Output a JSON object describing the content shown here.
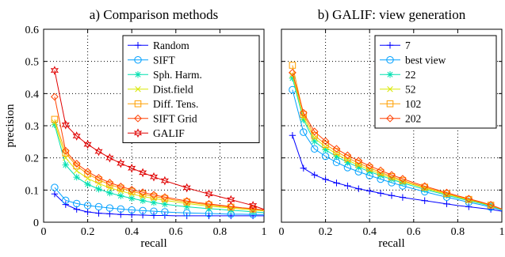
{
  "chart_data": [
    {
      "type": "line",
      "title": "a) Comparison methods",
      "xlabel": "recall",
      "ylabel": "precision",
      "xlim": [
        0,
        1
      ],
      "ylim": [
        0,
        0.6
      ],
      "xticks": [
        "0",
        "0.2",
        "0.4",
        "0.6",
        "0.8",
        "1"
      ],
      "yticks": [
        "0",
        "0.1",
        "0.2",
        "0.3",
        "0.4",
        "0.5",
        "0.6"
      ],
      "grid": true,
      "legend_position": "top-right",
      "x": [
        0.05,
        0.1,
        0.15,
        0.2,
        0.25,
        0.3,
        0.35,
        0.4,
        0.45,
        0.5,
        0.55,
        0.6,
        0.65,
        0.7,
        0.75,
        0.8,
        0.85,
        0.9,
        0.95,
        1.0
      ],
      "series": [
        {
          "name": "Random",
          "color": "#0000ff",
          "marker": "plus",
          "values": [
            0.088,
            0.055,
            0.04,
            0.032,
            0.028,
            0.026,
            0.024,
            0.023,
            0.022,
            0.021,
            0.021,
            0.02,
            0.02,
            0.02,
            0.02,
            0.02,
            0.02,
            0.02,
            0.02,
            0.02
          ]
        },
        {
          "name": "SIFT",
          "color": "#00a0ff",
          "marker": "circle",
          "values": [
            0.108,
            0.068,
            0.058,
            0.052,
            0.048,
            0.044,
            0.041,
            0.038,
            0.036,
            0.034,
            0.032,
            0.03,
            0.029,
            0.028,
            0.027,
            0.026,
            0.025,
            0.025,
            0.024,
            0.024
          ]
        },
        {
          "name": "Sph. Harm.",
          "color": "#00e0b0",
          "marker": "star",
          "values": [
            0.303,
            0.178,
            0.14,
            0.118,
            0.103,
            0.091,
            0.082,
            0.074,
            0.067,
            0.061,
            0.056,
            0.052,
            0.048,
            0.045,
            0.042,
            0.04,
            0.037,
            0.035,
            0.032,
            0.03
          ]
        },
        {
          "name": "Dist.field",
          "color": "#d8e800",
          "marker": "x",
          "values": [
            0.31,
            0.2,
            0.16,
            0.136,
            0.12,
            0.107,
            0.097,
            0.088,
            0.08,
            0.074,
            0.068,
            0.063,
            0.058,
            0.054,
            0.05,
            0.047,
            0.044,
            0.041,
            0.038,
            0.035
          ]
        },
        {
          "name": "Diff. Tens.",
          "color": "#ffa000",
          "marker": "square",
          "values": [
            0.32,
            0.215,
            0.175,
            0.15,
            0.132,
            0.117,
            0.106,
            0.096,
            0.088,
            0.08,
            0.074,
            0.068,
            0.063,
            0.058,
            0.054,
            0.05,
            0.047,
            0.044,
            0.041,
            0.037
          ]
        },
        {
          "name": "SIFT Grid",
          "color": "#ff4000",
          "marker": "diamond",
          "values": [
            0.39,
            0.222,
            0.182,
            0.157,
            0.138,
            0.123,
            0.111,
            0.101,
            0.093,
            0.085,
            0.078,
            0.072,
            0.066,
            0.061,
            0.057,
            0.053,
            0.049,
            0.045,
            0.042,
            0.038
          ]
        },
        {
          "name": "GALIF",
          "color": "#e00000",
          "marker": "hexagram",
          "values": [
            0.472,
            0.303,
            0.268,
            0.242,
            0.22,
            0.2,
            0.183,
            0.168,
            0.154,
            0.141,
            0.129,
            0.118,
            0.107,
            0.097,
            0.088,
            0.079,
            0.07,
            0.061,
            0.052,
            0.04
          ]
        }
      ]
    },
    {
      "type": "line",
      "title": "b) GALIF: view generation",
      "xlabel": "recall",
      "ylabel": "",
      "xlim": [
        0,
        1
      ],
      "ylim": [
        0,
        0.6
      ],
      "xticks": [
        "0",
        "0.2",
        "0.4",
        "0.6",
        "0.8",
        "1"
      ],
      "grid": true,
      "legend_position": "top-right",
      "x": [
        0.05,
        0.1,
        0.15,
        0.2,
        0.25,
        0.3,
        0.35,
        0.4,
        0.45,
        0.5,
        0.55,
        0.6,
        0.65,
        0.7,
        0.75,
        0.8,
        0.85,
        0.9,
        0.95,
        1.0
      ],
      "series": [
        {
          "name": "7",
          "color": "#0000ff",
          "marker": "plus",
          "values": [
            0.27,
            0.168,
            0.147,
            0.133,
            0.122,
            0.113,
            0.104,
            0.097,
            0.09,
            0.083,
            0.077,
            0.072,
            0.067,
            0.062,
            0.057,
            0.052,
            0.048,
            0.044,
            0.04,
            0.034
          ]
        },
        {
          "name": "best view",
          "color": "#00a0ff",
          "marker": "circle",
          "values": [
            0.412,
            0.28,
            0.228,
            0.205,
            0.186,
            0.17,
            0.157,
            0.145,
            0.134,
            0.123,
            0.113,
            0.104,
            0.095,
            0.086,
            0.078,
            0.07,
            0.062,
            0.055,
            0.047,
            0.037
          ]
        },
        {
          "name": "22",
          "color": "#00e0b0",
          "marker": "star",
          "values": [
            0.448,
            0.318,
            0.251,
            0.225,
            0.204,
            0.186,
            0.171,
            0.157,
            0.145,
            0.133,
            0.122,
            0.112,
            0.102,
            0.093,
            0.084,
            0.075,
            0.067,
            0.059,
            0.05,
            0.039
          ]
        },
        {
          "name": "52",
          "color": "#d8e800",
          "marker": "x",
          "values": [
            0.458,
            0.325,
            0.262,
            0.234,
            0.212,
            0.193,
            0.177,
            0.163,
            0.15,
            0.138,
            0.126,
            0.116,
            0.106,
            0.096,
            0.087,
            0.078,
            0.069,
            0.061,
            0.052,
            0.04
          ]
        },
        {
          "name": "102",
          "color": "#ffa000",
          "marker": "square",
          "values": [
            0.488,
            0.335,
            0.27,
            0.242,
            0.22,
            0.2,
            0.184,
            0.169,
            0.155,
            0.142,
            0.13,
            0.119,
            0.109,
            0.099,
            0.089,
            0.08,
            0.071,
            0.062,
            0.053,
            0.04
          ]
        },
        {
          "name": "202",
          "color": "#ff4000",
          "marker": "diamond",
          "values": [
            0.465,
            0.34,
            0.282,
            0.252,
            0.228,
            0.208,
            0.191,
            0.175,
            0.161,
            0.147,
            0.135,
            0.123,
            0.112,
            0.102,
            0.092,
            0.082,
            0.073,
            0.064,
            0.054,
            0.041
          ]
        }
      ]
    }
  ]
}
